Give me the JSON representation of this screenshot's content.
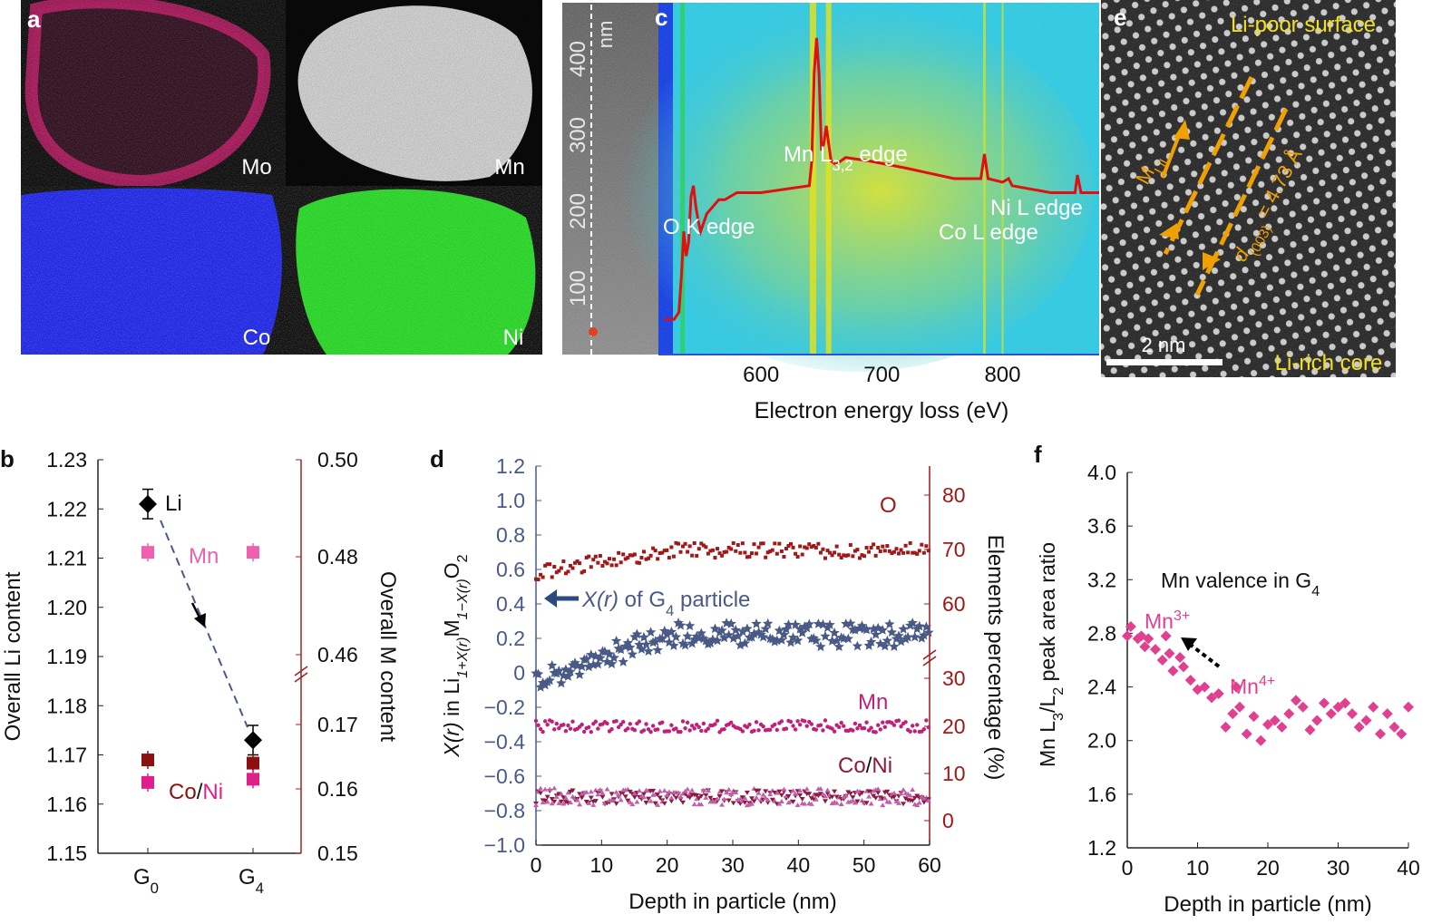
{
  "panels": {
    "a": {
      "letter": "a",
      "maps": [
        {
          "element": "Mo",
          "color": "#c8186a"
        },
        {
          "element": "Mn",
          "color": "#d8d8d8"
        },
        {
          "element": "Co",
          "color": "#1a22e0"
        },
        {
          "element": "Ni",
          "color": "#22d020"
        }
      ]
    },
    "c": {
      "letter": "c",
      "depth_unit": "nm",
      "depth_ticks": [
        "100",
        "200",
        "300",
        "400"
      ],
      "edge_labels": [
        "O K edge",
        "Mn L",
        "3,2",
        " edge",
        "Ni L edge",
        "Co L edge"
      ],
      "colors": {
        "spectrum": "#e01010",
        "bg_low": "#1840e0",
        "bg_mid": "#30c8e0",
        "bg_high": "#e0e020"
      }
    },
    "e": {
      "letter": "e",
      "labels": {
        "top": "Li-poor surface",
        "bottom": "Li-rich core",
        "scale": "2 nm"
      },
      "annotations": {
        "m": "M",
        "m_sub": "LiL",
        "d": "d",
        "d_sub": "(003)",
        "d_value": " = 4.73 Å"
      },
      "colors": {
        "label": "#f0e020",
        "annotation": "#f0a000"
      }
    },
    "b": {
      "letter": "b"
    },
    "d": {
      "letter": "d"
    },
    "f": {
      "letter": "f"
    }
  },
  "chart_data": [
    {
      "panel": "c",
      "type": "line",
      "xlabel": "Electron energy loss (eV)",
      "xticks": [
        600,
        700,
        800
      ],
      "xlim": [
        515,
        880
      ],
      "series": [
        {
          "values_x": [
            520,
            528,
            532,
            534,
            536,
            538,
            540,
            542,
            544,
            546,
            548,
            550,
            555,
            560,
            565,
            570,
            580,
            600,
            620,
            640,
            642,
            644,
            646,
            648,
            650,
            652,
            654,
            656,
            658,
            662,
            670,
            690,
            720,
            760,
            782,
            785,
            788,
            800,
            805,
            808,
            840,
            860,
            862,
            865,
            880
          ],
          "values_y": [
            0.1,
            0.1,
            0.12,
            0.22,
            0.35,
            0.28,
            0.32,
            0.45,
            0.48,
            0.42,
            0.38,
            0.35,
            0.4,
            0.42,
            0.44,
            0.44,
            0.46,
            0.46,
            0.47,
            0.48,
            0.55,
            0.8,
            0.9,
            0.8,
            0.58,
            0.6,
            0.65,
            0.6,
            0.55,
            0.54,
            0.56,
            0.55,
            0.53,
            0.5,
            0.5,
            0.57,
            0.5,
            0.49,
            0.5,
            0.48,
            0.46,
            0.46,
            0.51,
            0.46,
            0.46
          ]
        }
      ]
    },
    {
      "panel": "b",
      "type": "scatter",
      "categories": [
        "G0",
        "G4"
      ],
      "category_labels": [
        {
          "main": "G",
          "sub": "0"
        },
        {
          "main": "G",
          "sub": "4"
        }
      ],
      "ylabel": "Overall Li content",
      "ylabel_right": "Overall M content",
      "ylim": [
        1.15,
        1.23
      ],
      "yticks": [
        "1.15",
        "1.16",
        "1.17",
        "1.18",
        "1.19",
        "1.20",
        "1.21",
        "1.22",
        "1.23"
      ],
      "right_ticks_upper": [
        "0.46",
        "0.48",
        "0.50"
      ],
      "right_ticks_lower": [
        "0.15",
        "0.16",
        "0.17"
      ],
      "series": [
        {
          "name": "Li",
          "values": [
            1.221,
            1.173
          ],
          "error": [
            0.003,
            0.003
          ],
          "color": "#000000"
        },
        {
          "name": "Mn",
          "values_right": [
            0.481,
            0.481
          ],
          "color": "#ee60b0"
        },
        {
          "name_parts": [
            "Co",
            "/",
            "Ni"
          ],
          "values_right": [
            0.1645,
            0.164
          ],
          "color": "#8b1010"
        },
        {
          "name": "Ni",
          "values_right": [
            0.161,
            0.1615
          ],
          "color": "#e0208a"
        }
      ],
      "colors": {
        "Co": "#8b1010",
        "Ni": "#e0208a",
        "right_axis": "#a02020"
      }
    },
    {
      "panel": "d",
      "type": "scatter",
      "xlabel": "Depth in particle (nm)",
      "ylabel_parts": [
        "X(r)",
        " in Li",
        "1+X(r)",
        "M",
        "1−X(r)",
        "O",
        "2"
      ],
      "ylabel_right": "Elements percentage (%)",
      "xlim": [
        0,
        60
      ],
      "xticks": [
        0,
        10,
        20,
        30,
        40,
        50,
        60
      ],
      "ylim": [
        -1.0,
        1.2
      ],
      "yticks": [
        "−1.0",
        "−0.8",
        "−0.6",
        "−0.4",
        "−0.2",
        "0",
        "0.2",
        "0.4",
        "0.6",
        "0.8",
        "1.0",
        "1.2"
      ],
      "right_ticks": [
        "0",
        "10",
        "20",
        "30",
        "60",
        "70",
        "80"
      ],
      "series_profile": {
        "X": {
          "start": -0.05,
          "rise_end": 20,
          "plateau": 0.22,
          "color": "#4a5a86"
        },
        "O": {
          "start": 0.58,
          "rise_end": 20,
          "plateau": 0.71,
          "color": "#a01818"
        },
        "Mn": {
          "level": -0.31,
          "color": "#c02078"
        },
        "CoNi": {
          "level": -0.72,
          "colors": [
            "#8b1a40",
            "#c060a8"
          ]
        }
      },
      "labels": {
        "O": "O",
        "Mn": "Mn",
        "Co": "Co",
        "slash": "/",
        "Ni": "Ni",
        "xr": "X(r)",
        "xr_rest": " of G",
        "xr_sub": "4",
        "xr_tail": " particle"
      }
    },
    {
      "panel": "f",
      "type": "scatter",
      "title": "Mn valence in G",
      "title_sub": "4",
      "xlabel": "Depth in particle (nm)",
      "ylabel_parts": [
        "Mn L",
        "3",
        "/L",
        "2",
        " peak area ratio"
      ],
      "xlim": [
        0,
        40
      ],
      "xticks": [
        0,
        10,
        20,
        30,
        40
      ],
      "ylim": [
        1.2,
        4.0
      ],
      "yticks": [
        "1.2",
        "1.6",
        "2.0",
        "2.4",
        "2.8",
        "3.2",
        "3.6",
        "4.0"
      ],
      "labels": {
        "mn3": "Mn",
        "mn3_sup": "3+",
        "mn4": "Mn",
        "mn4_sup": "4+"
      },
      "color": "#e0408f",
      "x": [
        0,
        0.5,
        1.5,
        2,
        2.5,
        3,
        4,
        5,
        5.5,
        6,
        6.5,
        7.5,
        8,
        9,
        10,
        11,
        12,
        13,
        14,
        15,
        15.5,
        16,
        17,
        18,
        19,
        20,
        21,
        22,
        23,
        24,
        25,
        26,
        27,
        28,
        29,
        30,
        31,
        32,
        33,
        34,
        35,
        36,
        37,
        38,
        39,
        40
      ],
      "y": [
        2.78,
        2.85,
        2.76,
        2.78,
        2.7,
        2.76,
        2.68,
        2.6,
        2.78,
        2.65,
        2.52,
        2.62,
        2.55,
        2.45,
        2.38,
        2.4,
        2.32,
        2.35,
        2.1,
        2.2,
        2.4,
        2.25,
        2.05,
        2.18,
        2.0,
        2.12,
        2.15,
        2.1,
        2.2,
        2.3,
        2.25,
        2.08,
        2.15,
        2.28,
        2.2,
        2.25,
        2.28,
        2.2,
        2.1,
        2.15,
        2.25,
        2.05,
        2.2,
        2.1,
        2.05,
        2.25
      ]
    }
  ]
}
